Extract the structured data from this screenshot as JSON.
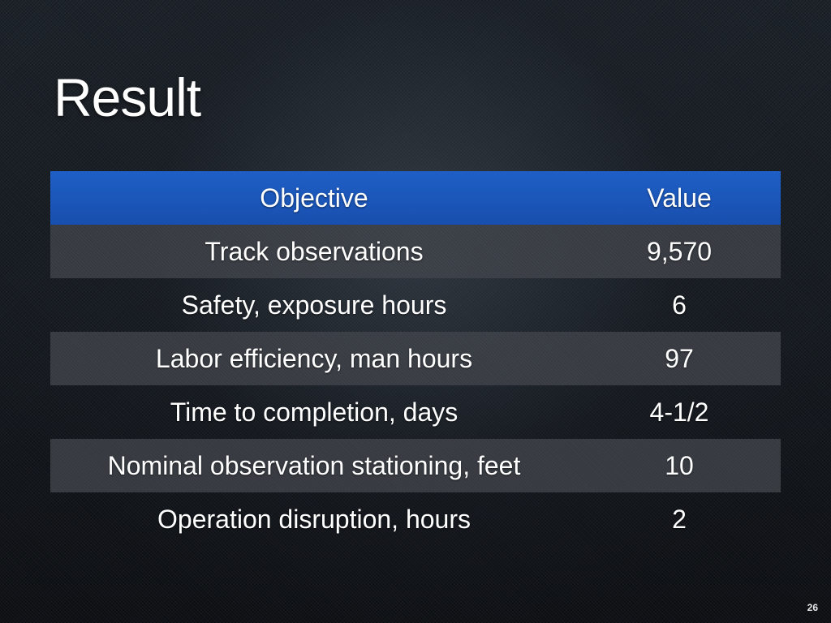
{
  "slide": {
    "title": "Result",
    "page_number": "26"
  },
  "table": {
    "header": {
      "objective": "Objective",
      "value": "Value"
    },
    "rows": [
      {
        "objective": "Track observations",
        "value": "9,570"
      },
      {
        "objective": "Safety, exposure hours",
        "value": "6"
      },
      {
        "objective": "Labor efficiency, man hours",
        "value": "97"
      },
      {
        "objective": "Time to completion, days",
        "value": "4-1/2"
      },
      {
        "objective": "Nominal observation stationing, feet",
        "value": "10"
      },
      {
        "objective": "Operation disruption, hours",
        "value": "2"
      }
    ]
  },
  "colors": {
    "header_background": "#1a55b8",
    "shaded_row": "#3e4248",
    "text": "#ffffff"
  }
}
